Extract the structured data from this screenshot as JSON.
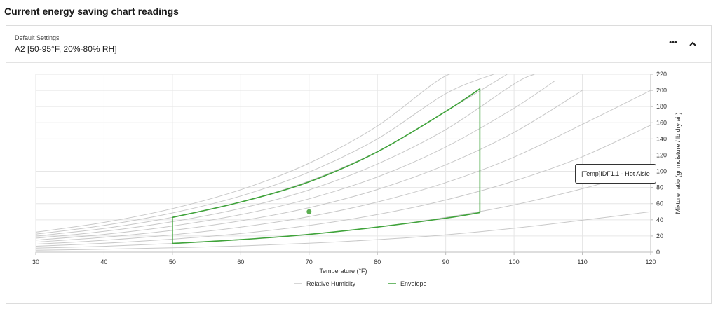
{
  "page": {
    "title": "Current energy saving chart readings"
  },
  "card": {
    "settings_label": "Default Settings",
    "settings_value": "A2 [50-95°F, 20%-80% RH]",
    "more_label": "•••",
    "collapse_icon": "chevron-up-icon"
  },
  "tooltip": {
    "text": "[Temp]IDF1.1 - Hot Aisle"
  },
  "colors": {
    "rh": "#c8c8c8",
    "envelope": "#3fa33a",
    "point": "#5cae52",
    "grid": "#e6e6e6",
    "axis": "#bdbdbd"
  },
  "chart_data": {
    "type": "line",
    "title": "",
    "xlabel": "Temperature (°F)",
    "ylabel": "Mixture ratio (gr moisture / lb dry air)",
    "xlim": [
      30,
      120
    ],
    "ylim": [
      0,
      220
    ],
    "xticks": [
      30,
      40,
      50,
      60,
      70,
      80,
      90,
      100,
      110,
      120
    ],
    "yticks": [
      0,
      20,
      40,
      60,
      80,
      100,
      120,
      140,
      160,
      180,
      200,
      220
    ],
    "y_axis_side": "right",
    "grid": true,
    "legend": {
      "position": "bottom-center",
      "entries": [
        "Relative Humidity",
        "Envelope"
      ]
    },
    "rh_curves": [
      {
        "x": [
          30,
          40,
          50,
          60,
          70,
          80,
          90,
          100,
          110,
          120
        ],
        "y": [
          2.4,
          3.6,
          5.4,
          7.7,
          11,
          15.5,
          21.5,
          29.5,
          39.5,
          50
        ]
      },
      {
        "x": [
          30,
          40,
          50,
          60,
          70,
          80,
          90,
          100,
          110,
          120
        ],
        "y": [
          5,
          7.3,
          10.7,
          15.4,
          22,
          31,
          43,
          58.5,
          78.5,
          102
        ]
      },
      {
        "x": [
          30,
          40,
          50,
          60,
          70,
          80,
          90,
          100,
          110,
          120
        ],
        "y": [
          7.4,
          11,
          16.1,
          23,
          33,
          46.5,
          64.5,
          88,
          118,
          157
        ]
      },
      {
        "x": [
          30,
          40,
          50,
          60,
          70,
          80,
          90,
          100,
          110,
          120
        ],
        "y": [
          9.9,
          14.7,
          21.5,
          30.9,
          44,
          62,
          86,
          117.5,
          158,
          200
        ]
      },
      {
        "x": [
          30,
          40,
          50,
          60,
          70,
          80,
          90,
          100,
          110
        ],
        "y": [
          12.4,
          18.4,
          26.9,
          38.7,
          55,
          77.5,
          108,
          148,
          200
        ]
      },
      {
        "x": [
          30,
          40,
          50,
          60,
          70,
          80,
          90,
          100,
          106
        ],
        "y": [
          14.8,
          22,
          32.3,
          46.4,
          66,
          93,
          130,
          178,
          212
        ]
      },
      {
        "x": [
          30,
          40,
          50,
          60,
          70,
          80,
          90,
          100,
          103
        ],
        "y": [
          17.3,
          25.7,
          37.7,
          54.1,
          77,
          109,
          151.5,
          208,
          220
        ]
      },
      {
        "x": [
          30,
          40,
          50,
          60,
          70,
          80,
          90,
          99
        ],
        "y": [
          19.8,
          29.4,
          43.1,
          61.8,
          88,
          124.5,
          174,
          220
        ]
      },
      {
        "x": [
          30,
          40,
          50,
          60,
          70,
          80,
          90,
          97
        ],
        "y": [
          22.3,
          33.1,
          48.5,
          69.5,
          99,
          140,
          196,
          220
        ]
      },
      {
        "x": [
          30,
          40,
          50,
          60,
          70,
          80,
          90,
          95
        ],
        "y": [
          24.8,
          36.8,
          53.9,
          77.3,
          110,
          156,
          218,
          220
        ]
      }
    ],
    "envelope": {
      "x": [
        50,
        50,
        60,
        70,
        80,
        90,
        95,
        95,
        90,
        80,
        70,
        60,
        50
      ],
      "y": [
        10.7,
        43,
        62,
        87,
        124,
        174,
        202,
        49,
        42,
        31,
        22,
        15.5,
        10.7
      ]
    },
    "points": [
      {
        "label": "[Temp]IDF1.1 - Hot Aisle",
        "x": 70,
        "y": 50
      }
    ]
  }
}
